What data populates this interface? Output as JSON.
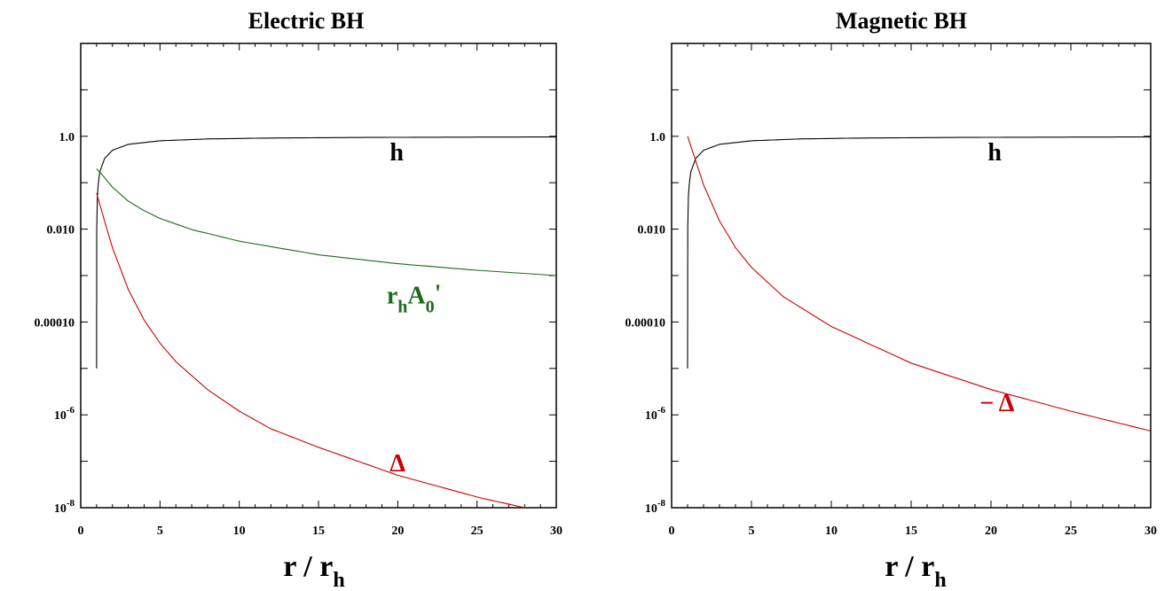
{
  "colors": {
    "h": "#000000",
    "delta": "#cc0000",
    "field": "#1a6b1a",
    "axis": "#000000"
  },
  "chart_data": [
    {
      "type": "line",
      "title": "Electric BH",
      "xlabel": {
        "main": "r / r",
        "sub": "h"
      },
      "xlim": [
        0,
        30
      ],
      "ylim": [
        1e-08,
        100
      ],
      "yscale": "log",
      "xticks": [
        "0",
        "5",
        "10",
        "15",
        "20",
        "25",
        "30"
      ],
      "yticks": [
        {
          "value": 1.0,
          "label": "1.0",
          "sup": ""
        },
        {
          "value": 0.01,
          "label": "0.010",
          "sup": ""
        },
        {
          "value": 0.0001,
          "label": "0.00010",
          "sup": ""
        },
        {
          "value": 1e-06,
          "label": "10",
          "sup": "-6"
        },
        {
          "value": 1e-08,
          "label": "10",
          "sup": "-8"
        }
      ],
      "series": [
        {
          "name": "h",
          "color": "#000000",
          "x": [
            1.0,
            1.01,
            1.05,
            1.1,
            1.2,
            1.5,
            2,
            3,
            5,
            8,
            12,
            18,
            24,
            30
          ],
          "y": [
            1e-05,
            0.01,
            0.048,
            0.09,
            0.17,
            0.33,
            0.5,
            0.67,
            0.8,
            0.875,
            0.917,
            0.944,
            0.958,
            0.967
          ]
        },
        {
          "name": "r_h A_0'",
          "color": "#1a6b1a",
          "x": [
            1,
            1.5,
            2,
            3,
            4,
            5,
            7,
            10,
            15,
            20,
            25,
            30
          ],
          "y": [
            0.2,
            0.13,
            0.08,
            0.04,
            0.025,
            0.017,
            0.0098,
            0.0055,
            0.0028,
            0.0018,
            0.0013,
            0.001
          ]
        },
        {
          "name": "Δ",
          "color": "#cc0000",
          "x": [
            1,
            1.5,
            2,
            3,
            4,
            5,
            6,
            8,
            10,
            12,
            15,
            20,
            25,
            30
          ],
          "y": [
            0.06,
            0.015,
            0.004,
            0.0005,
            0.00011,
            3.5e-05,
            1.4e-05,
            3.5e-06,
            1.2e-06,
            5e-07,
            2e-07,
            5e-08,
            1.7e-08,
            7e-09
          ]
        }
      ],
      "labels": [
        {
          "text": "h",
          "sub": "",
          "extra": "",
          "color": "#000000",
          "x": 19.5,
          "y": 0.3
        },
        {
          "text": "r",
          "sub": "h",
          "extra": "A",
          "sub2": "0",
          "prime": "'",
          "color": "#1a6b1a",
          "x": 19.3,
          "y": 0.00025
        },
        {
          "text": "Δ",
          "sub": "",
          "extra": "",
          "color": "#cc0000",
          "x": 19.5,
          "y": 6e-08
        }
      ]
    },
    {
      "type": "line",
      "title": "Magnetic BH",
      "xlabel": {
        "main": "r / r",
        "sub": "h"
      },
      "xlim": [
        0,
        30
      ],
      "ylim": [
        1e-08,
        100
      ],
      "yscale": "log",
      "xticks": [
        "0",
        "5",
        "10",
        "15",
        "20",
        "25",
        "30"
      ],
      "yticks": [
        {
          "value": 1.0,
          "label": "1.0",
          "sup": ""
        },
        {
          "value": 0.01,
          "label": "0.010",
          "sup": ""
        },
        {
          "value": 0.0001,
          "label": "0.00010",
          "sup": ""
        },
        {
          "value": 1e-06,
          "label": "10",
          "sup": "-6"
        },
        {
          "value": 1e-08,
          "label": "10",
          "sup": "-8"
        }
      ],
      "series": [
        {
          "name": "h",
          "color": "#000000",
          "x": [
            1.0,
            1.01,
            1.05,
            1.1,
            1.2,
            1.5,
            2,
            3,
            5,
            8,
            12,
            18,
            24,
            30
          ],
          "y": [
            1e-05,
            0.01,
            0.048,
            0.09,
            0.17,
            0.33,
            0.5,
            0.67,
            0.8,
            0.875,
            0.917,
            0.944,
            0.958,
            0.967
          ]
        },
        {
          "name": "−Δ",
          "color": "#cc0000",
          "x": [
            1,
            1.5,
            2,
            3,
            4,
            5,
            7,
            10,
            15,
            20,
            25,
            30
          ],
          "y": [
            1.0,
            0.3,
            0.09,
            0.015,
            0.004,
            0.0015,
            0.00035,
            8e-05,
            1.3e-05,
            3.5e-06,
            1.2e-06,
            4.5e-07
          ]
        }
      ],
      "labels": [
        {
          "text": "h",
          "sub": "",
          "extra": "",
          "color": "#000000",
          "x": 19.8,
          "y": 0.3
        },
        {
          "text": "− Δ",
          "sub": "",
          "extra": "",
          "color": "#cc0000",
          "x": 19.3,
          "y": 1.2e-06
        }
      ]
    }
  ]
}
